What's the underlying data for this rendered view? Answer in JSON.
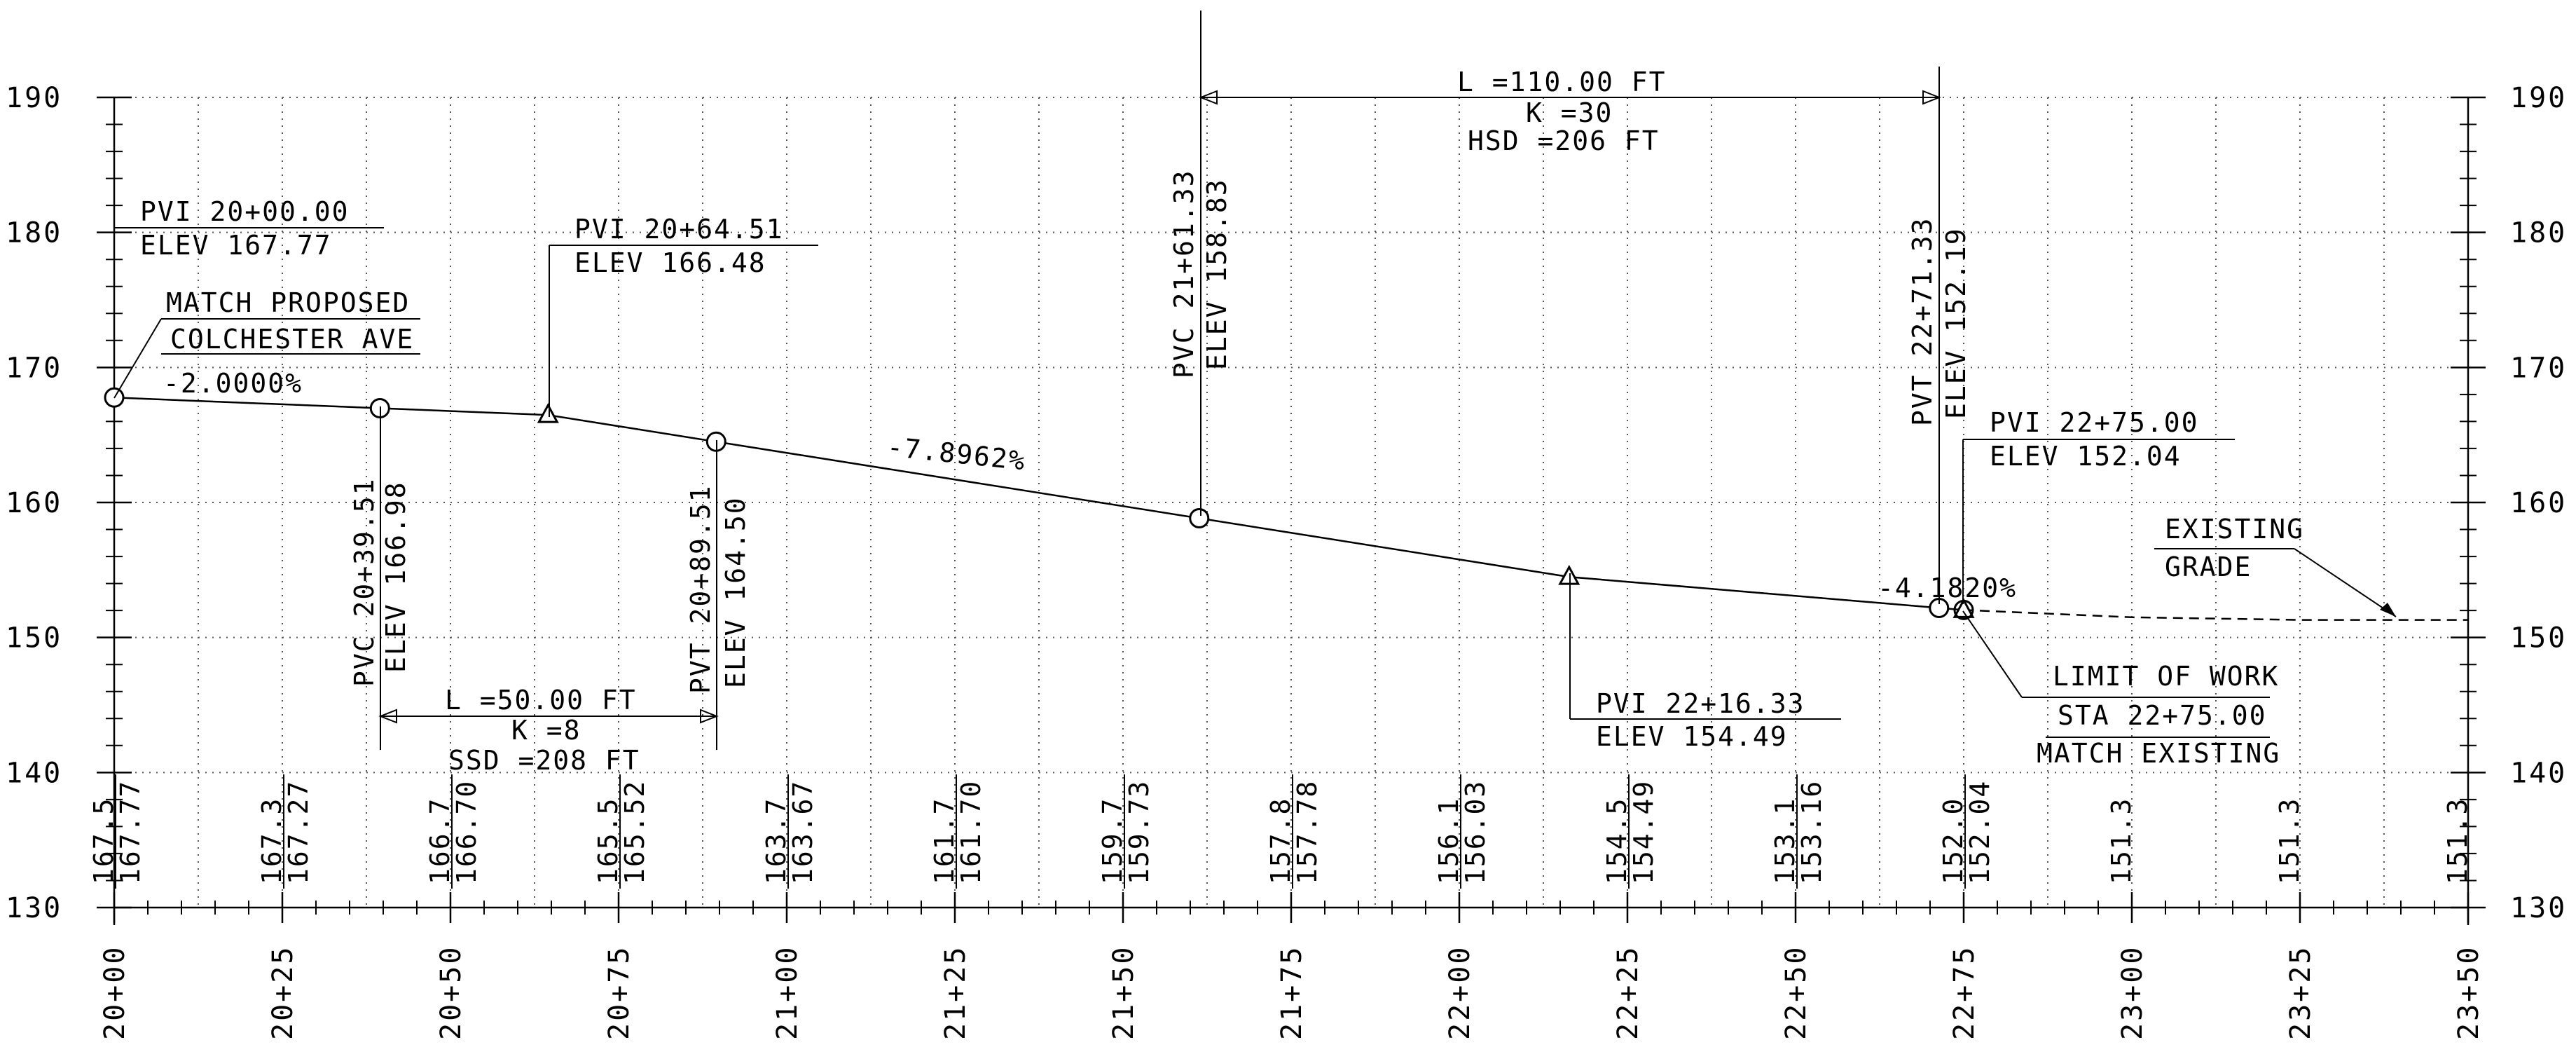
{
  "chart_data": {
    "type": "line",
    "x_ticks": [
      "20+00",
      "20+25",
      "20+50",
      "20+75",
      "21+00",
      "21+25",
      "21+50",
      "21+75",
      "22+00",
      "22+25",
      "22+50",
      "22+75",
      "23+00",
      "23+25",
      "23+50"
    ],
    "y_ticks": [
      "130",
      "140",
      "150",
      "160",
      "170",
      "180",
      "190"
    ],
    "xlim": [
      2000,
      2350
    ],
    "ylim": [
      130,
      190
    ],
    "grid": true,
    "series": [
      {
        "points": [
          [
            2000,
            167.77
          ],
          [
            2039.51,
            166.98
          ],
          [
            2064.51,
            166.48
          ],
          [
            2089.51,
            164.5
          ],
          [
            2161.33,
            158.83
          ],
          [
            2216.33,
            154.49
          ],
          [
            2271.33,
            152.19
          ],
          [
            2275,
            152.04
          ]
        ]
      },
      {
        "points": [
          [
            2275,
            152.04
          ],
          [
            2300,
            151.5
          ],
          [
            2325,
            151.3
          ],
          [
            2350,
            151.3
          ]
        ],
        "style": "dashed"
      }
    ],
    "bottom_labels": [
      {
        "x": 2000,
        "existing": "167.5",
        "proposed": "167.77"
      },
      {
        "x": 2025,
        "existing": "167.3",
        "proposed": "167.27"
      },
      {
        "x": 2050,
        "existing": "166.7",
        "proposed": "166.70"
      },
      {
        "x": 2075,
        "existing": "165.5",
        "proposed": "165.52"
      },
      {
        "x": 2100,
        "existing": "163.7",
        "proposed": "163.67"
      },
      {
        "x": 2125,
        "existing": "161.7",
        "proposed": "161.70"
      },
      {
        "x": 2150,
        "existing": "159.7",
        "proposed": "159.73"
      },
      {
        "x": 2175,
        "existing": "157.8",
        "proposed": "157.78"
      },
      {
        "x": 2200,
        "existing": "156.1",
        "proposed": "156.03"
      },
      {
        "x": 2225,
        "existing": "154.5",
        "proposed": "154.49"
      },
      {
        "x": 2250,
        "existing": "153.1",
        "proposed": "153.16"
      },
      {
        "x": 2275,
        "existing": "152.0",
        "proposed": "152.04"
      },
      {
        "x": 2300,
        "existing": "151.3",
        "proposed": ""
      },
      {
        "x": 2325,
        "existing": "151.3",
        "proposed": ""
      },
      {
        "x": 2350,
        "existing": "151.3",
        "proposed": ""
      }
    ],
    "annotations": {
      "pvi1_sta": "PVI 20+00.00",
      "pvi1_elev": "ELEV 167.77",
      "match_1": "MATCH PROPOSED",
      "match_2": "COLCHESTER AVE",
      "grade1": "-2.0000%",
      "pvi2_sta": "PVI 20+64.51",
      "pvi2_elev": "ELEV 166.48",
      "pvc1_sta": "PVC 20+39.51",
      "pvc1_elev": "ELEV 166.98",
      "pvt1_sta": "PVT 20+89.51",
      "pvt1_elev": "ELEV 164.50",
      "vc1_l": "L =50.00 FT",
      "vc1_k": "K =8",
      "vc1_ssd": "SSD =208 FT",
      "grade2": "-7.8962%",
      "pvc2_sta": "PVC 21+61.33",
      "pvc2_elev": "ELEV 158.83",
      "vc2_l": "L =110.00 FT",
      "vc2_k": "K =30",
      "vc2_hsd": "HSD =206 FT",
      "pvi3_sta": "PVI 22+16.33",
      "pvi3_elev": "ELEV 154.49",
      "pvt2_sta": "PVT 22+71.33",
      "pvt2_elev": "ELEV 152.19",
      "grade3": "-4.1820%",
      "pvi4_sta": "PVI 22+75.00",
      "pvi4_elev": "ELEV 152.04",
      "existing_1": "EXISTING",
      "existing_2": "GRADE",
      "limit_1": "LIMIT OF WORK",
      "limit_2": "STA 22+75.00",
      "limit_3": "MATCH EXISTING"
    }
  }
}
